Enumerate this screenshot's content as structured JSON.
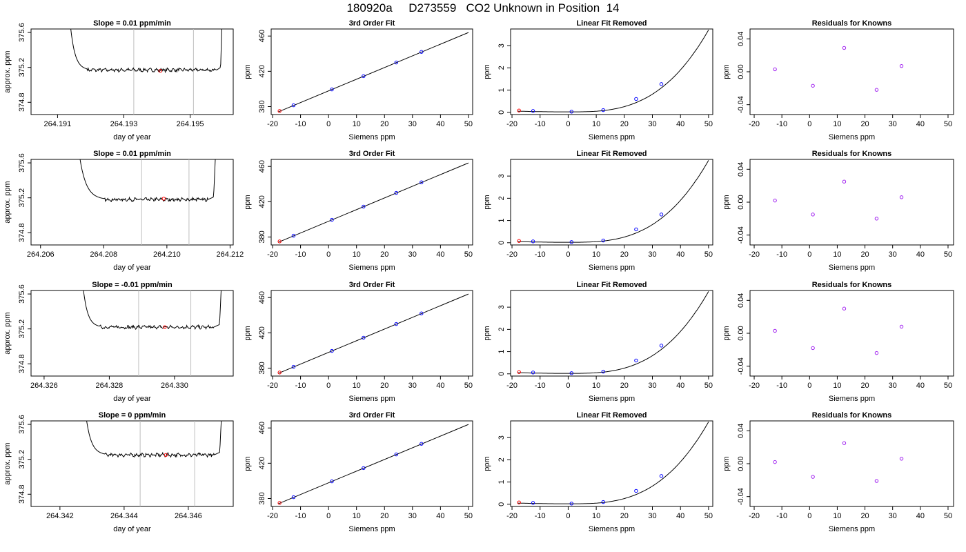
{
  "page": {
    "title": "180920a     D273559   CO2 Unknown in Position  14"
  },
  "chart_data": {
    "rows": [
      {
        "time_panel": {
          "type": "line",
          "title": "Slope =  0.01  ppm/min",
          "xlabel": "day of year",
          "ylabel": "approx. ppm",
          "x_ticks": [
            "264.191",
            "264.193",
            "264.195"
          ],
          "x_tick_values": [
            264.191,
            264.193,
            264.195
          ],
          "xlim": [
            264.1902,
            264.1963
          ],
          "y_ticks": [
            "374.8",
            "375.2",
            "375.6"
          ],
          "y_tick_values": [
            374.8,
            375.2,
            375.6
          ],
          "ylim": [
            374.66,
            375.64
          ],
          "x_start": 264.191,
          "x_end": 264.196,
          "rise_start": 264.1913,
          "drop_end": 264.1916,
          "plateau_start": 264.1919,
          "plateau_end": 264.1958,
          "rise_end": 264.196,
          "plateau_level": 375.17,
          "vlines": [
            264.1933,
            264.1951
          ],
          "marker": {
            "x": 264.1941,
            "y": 375.16
          }
        }
      },
      {
        "time_panel": {
          "type": "line",
          "title": "Slope =  0.01  ppm/min",
          "xlabel": "day of year",
          "ylabel": "approx. ppm",
          "x_ticks": [
            "264.206",
            "264.208",
            "264.210",
            "264.212"
          ],
          "x_tick_values": [
            264.206,
            264.208,
            264.21,
            264.212
          ],
          "xlim": [
            264.2057,
            264.2121
          ],
          "y_ticks": [
            "374.8",
            "375.2",
            "375.6"
          ],
          "y_tick_values": [
            374.8,
            375.2,
            375.6
          ],
          "ylim": [
            374.66,
            375.64
          ],
          "x_start": 264.2068,
          "x_end": 264.2116,
          "rise_start": 264.2071,
          "drop_end": 264.2075,
          "plateau_start": 264.208,
          "plateau_end": 264.2113,
          "rise_end": 264.2116,
          "plateau_level": 375.18,
          "vlines": [
            264.2092,
            264.2107
          ],
          "marker": {
            "x": 264.2099,
            "y": 375.19
          }
        }
      },
      {
        "time_panel": {
          "type": "line",
          "title": "Slope =  -0.01  ppm/min",
          "xlabel": "day of year",
          "ylabel": "approx. ppm",
          "x_ticks": [
            "264.326",
            "264.328",
            "264.330"
          ],
          "x_tick_values": [
            264.326,
            264.328,
            264.33
          ],
          "xlim": [
            264.3256,
            264.3318
          ],
          "y_ticks": [
            "374.8",
            "375.2",
            "375.6"
          ],
          "y_tick_values": [
            374.8,
            375.2,
            375.6
          ],
          "ylim": [
            374.66,
            375.64
          ],
          "x_start": 264.3267,
          "x_end": 264.3315,
          "rise_start": 264.3271,
          "drop_end": 264.3273,
          "plateau_start": 264.3277,
          "plateau_end": 264.3312,
          "rise_end": 264.3315,
          "plateau_level": 375.22,
          "vlines": [
            264.3289,
            264.3305
          ],
          "marker": {
            "x": 264.3297,
            "y": 375.22
          }
        }
      },
      {
        "time_panel": {
          "type": "line",
          "title": "Slope =  0  ppm/min",
          "xlabel": "day of year",
          "ylabel": "approx. ppm",
          "x_ticks": [
            "264.342",
            "264.344",
            "264.346"
          ],
          "x_tick_values": [
            264.342,
            264.344,
            264.346
          ],
          "xlim": [
            264.3411,
            264.3474
          ],
          "y_ticks": [
            "374.8",
            "375.2",
            "375.6"
          ],
          "y_tick_values": [
            374.8,
            375.2,
            375.6
          ],
          "ylim": [
            374.66,
            375.64
          ],
          "x_start": 264.3424,
          "x_end": 264.3471,
          "rise_start": 264.3427,
          "drop_end": 264.343,
          "plateau_start": 264.3434,
          "plateau_end": 264.3468,
          "rise_end": 264.3471,
          "plateau_level": 375.25,
          "vlines": [
            264.3445,
            264.3462
          ],
          "marker": {
            "x": 264.3453,
            "y": 375.25
          }
        }
      }
    ],
    "fit_panel": {
      "type": "scatter",
      "title": "3rd Order Fit",
      "xlabel": "Siemens ppm",
      "ylabel": "ppm",
      "x_ticks": [
        "-20",
        "-10",
        "0",
        "10",
        "20",
        "30",
        "40",
        "50"
      ],
      "x_tick_values": [
        -20,
        -10,
        0,
        10,
        20,
        30,
        40,
        50
      ],
      "xlim": [
        -20.5,
        51.5
      ],
      "y_ticks": [
        "380",
        "420",
        "460"
      ],
      "y_tick_values": [
        380,
        420,
        460
      ],
      "ylim": [
        371,
        468
      ],
      "line": {
        "x": [
          -18,
          50
        ],
        "y": [
          374,
          464
        ]
      },
      "known_points": [
        {
          "x": -12.5,
          "y": 381.5
        },
        {
          "x": 1.2,
          "y": 399.5
        },
        {
          "x": 12.5,
          "y": 414.5
        },
        {
          "x": 24.2,
          "y": 430
        },
        {
          "x": 33.2,
          "y": 442
        }
      ],
      "unknown_point": {
        "x": -17.5,
        "y": 375.0
      }
    },
    "linear_removed_panel": {
      "type": "scatter",
      "title": "Linear Fit Removed",
      "xlabel": "Siemens ppm",
      "ylabel": "ppm",
      "x_ticks": [
        "-20",
        "-10",
        "0",
        "10",
        "20",
        "30",
        "40",
        "50"
      ],
      "x_tick_values": [
        -20,
        -10,
        0,
        10,
        20,
        30,
        40,
        50
      ],
      "xlim": [
        -20.5,
        51.5
      ],
      "y_ticks": [
        "0",
        "1",
        "2",
        "3"
      ],
      "y_tick_values": [
        0,
        1,
        2,
        3
      ],
      "ylim": [
        -0.1,
        3.75
      ],
      "curve_x_range": [
        -18,
        50
      ],
      "known_points": [
        {
          "x": -12.5,
          "y": 0.06
        },
        {
          "x": 1.2,
          "y": 0.03
        },
        {
          "x": 12.5,
          "y": 0.1
        },
        {
          "x": 24.2,
          "y": 0.6
        },
        {
          "x": 33.2,
          "y": 1.27
        }
      ],
      "unknown_point": {
        "x": -17.5,
        "y": 0.08
      }
    },
    "residuals_panel": {
      "type": "scatter",
      "title": "Residuals for Knowns",
      "xlabel": "Siemens ppm",
      "ylabel": "ppm",
      "x_ticks": [
        "-20",
        "-10",
        "0",
        "10",
        "20",
        "30",
        "40",
        "50"
      ],
      "x_tick_values": [
        -20,
        -10,
        0,
        10,
        20,
        30,
        40,
        50
      ],
      "xlim": [
        -21.5,
        52
      ],
      "y_ticks": [
        "-0.04",
        "0.00",
        "0.04"
      ],
      "y_tick_values": [
        -0.04,
        0.0,
        0.04
      ],
      "ylim": [
        -0.052,
        0.052
      ],
      "rows": [
        [
          {
            "x": -12.5,
            "y": 0.003
          },
          {
            "x": 1.2,
            "y": -0.017
          },
          {
            "x": 12.5,
            "y": 0.029
          },
          {
            "x": 24.2,
            "y": -0.022
          },
          {
            "x": 33.2,
            "y": 0.007
          }
        ],
        [
          {
            "x": -12.5,
            "y": 0.002
          },
          {
            "x": 1.2,
            "y": -0.015
          },
          {
            "x": 12.5,
            "y": 0.025
          },
          {
            "x": 24.2,
            "y": -0.02
          },
          {
            "x": 33.2,
            "y": 0.006
          }
        ],
        [
          {
            "x": -12.5,
            "y": 0.003
          },
          {
            "x": 1.2,
            "y": -0.018
          },
          {
            "x": 12.5,
            "y": 0.03
          },
          {
            "x": 24.2,
            "y": -0.024
          },
          {
            "x": 33.2,
            "y": 0.008
          }
        ],
        [
          {
            "x": -12.5,
            "y": 0.002
          },
          {
            "x": 1.2,
            "y": -0.016
          },
          {
            "x": 12.5,
            "y": 0.025
          },
          {
            "x": 24.2,
            "y": -0.021
          },
          {
            "x": 33.2,
            "y": 0.006
          }
        ]
      ]
    },
    "colors": {
      "axis": "#000000",
      "trace": "#000000",
      "vline": "#bebebe",
      "known_point": "#0000ff",
      "unknown_point": "#ff0000",
      "residual_point": "#a020f0"
    }
  }
}
